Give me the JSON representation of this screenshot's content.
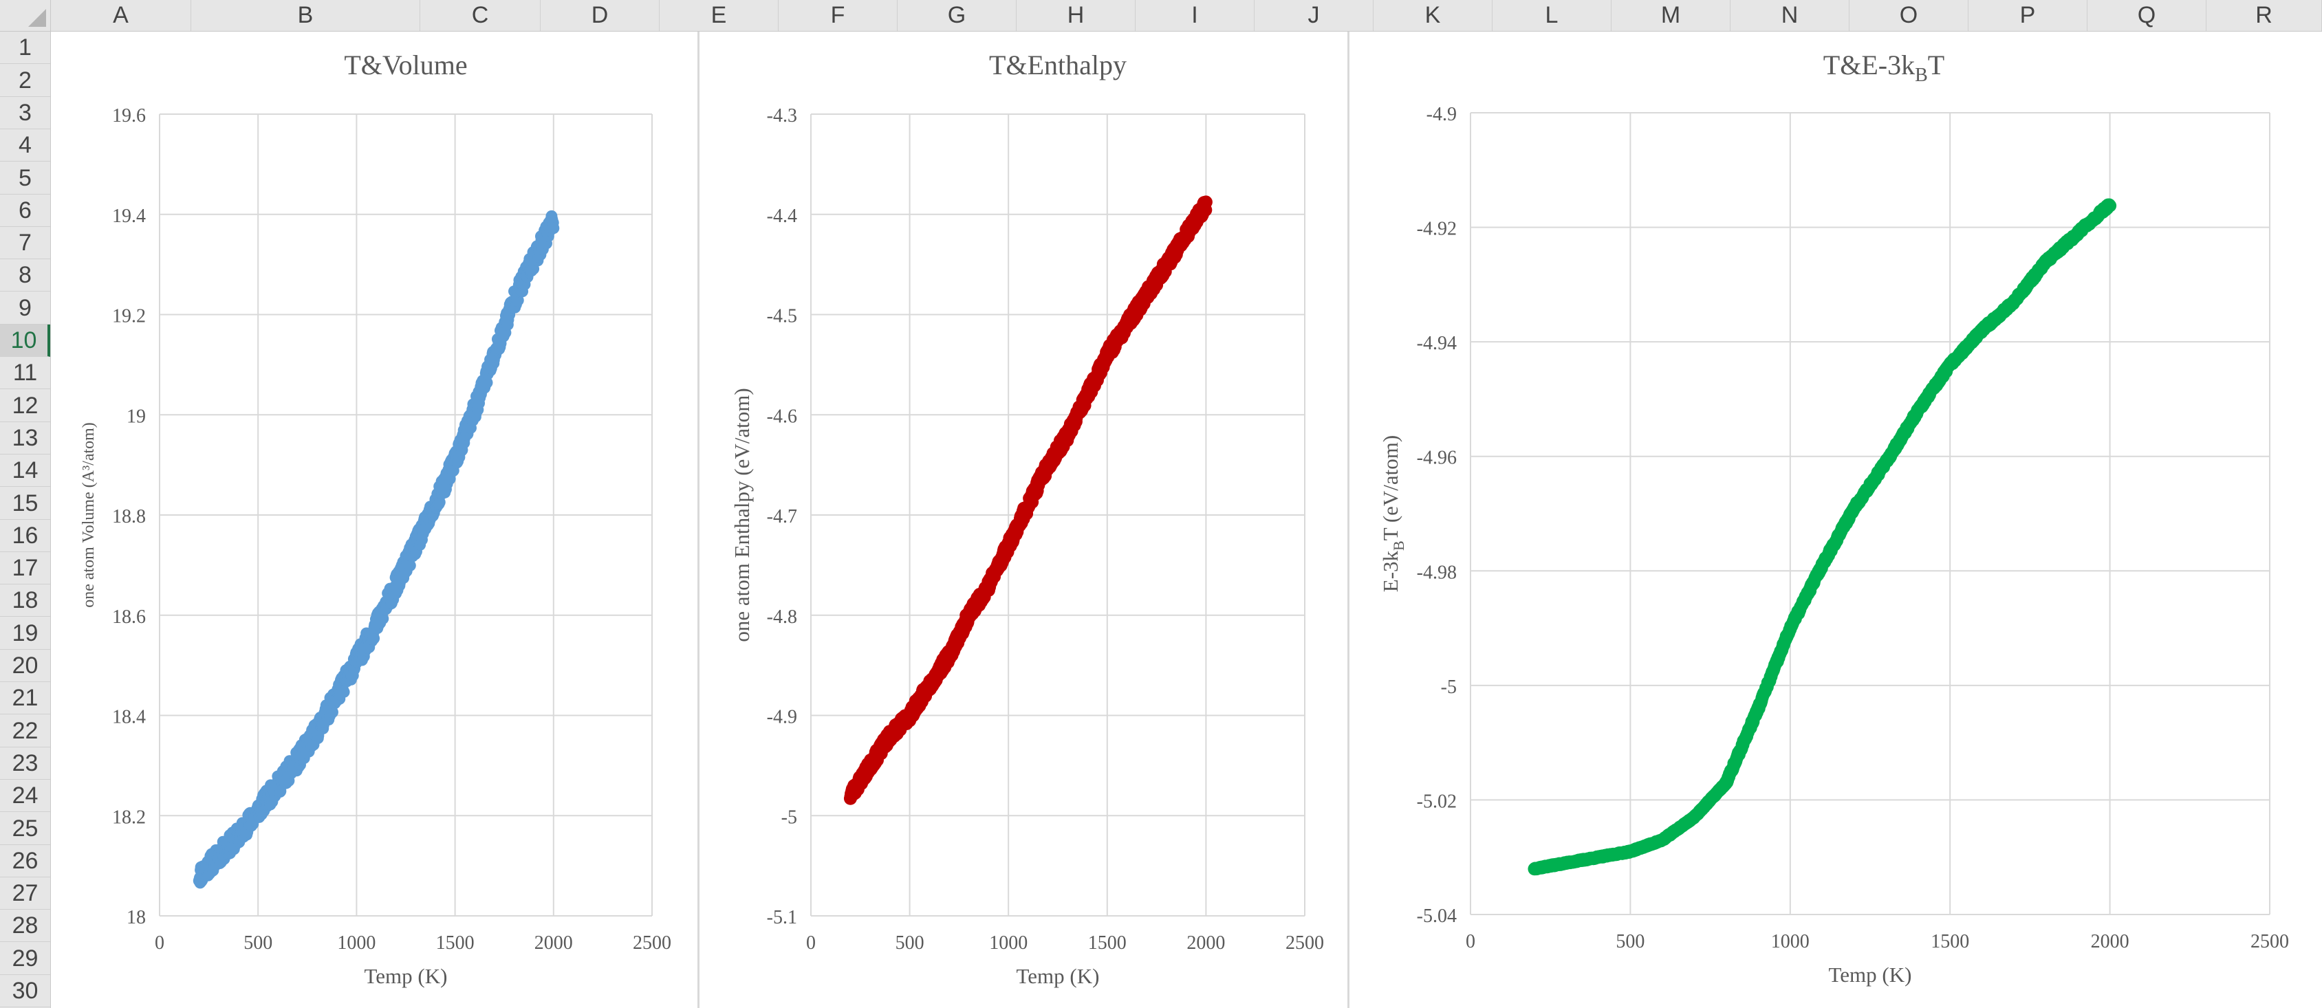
{
  "spreadsheet": {
    "columns": [
      "A",
      "B",
      "C",
      "D",
      "E",
      "F",
      "G",
      "H",
      "I",
      "J",
      "K",
      "L",
      "M",
      "N",
      "O",
      "P",
      "Q",
      "R"
    ],
    "rows": [
      "1",
      "2",
      "3",
      "4",
      "5",
      "6",
      "7",
      "8",
      "9",
      "10",
      "11",
      "12",
      "13",
      "14",
      "15",
      "16",
      "17",
      "18",
      "19",
      "20",
      "21",
      "22",
      "23",
      "24",
      "25",
      "26",
      "27",
      "28",
      "29",
      "30"
    ],
    "active_row": "10"
  },
  "colors": {
    "volume_series": "#5b9bd5",
    "enthalpy_series": "#c00000",
    "energy_series": "#00b050",
    "title_text": "#595959",
    "gridline": "#d9d9d9"
  },
  "charts": [
    {
      "title": "T&Volume",
      "xlabel": "Temp (K)",
      "ylabel": "one atom Volume (A³/atom)"
    },
    {
      "title": "T&Enthalpy",
      "xlabel": "Temp (K)",
      "ylabel": "one atom Enthalpy (eV/atom)"
    },
    {
      "title_main": "T&E-3k",
      "title_sub": "B",
      "title_end": "T",
      "xlabel": "Temp (K)",
      "ylabel_main": "E-3k",
      "ylabel_sub": "B",
      "ylabel_end": "T (eV/atom)"
    }
  ],
  "chart_data": [
    {
      "type": "scatter",
      "title": "T&Volume",
      "xlabel": "Temp (K)",
      "ylabel": "one atom Volume (A³/atom)",
      "xlim": [
        0,
        2500
      ],
      "ylim": [
        18,
        19.6
      ],
      "xticks": [
        0,
        500,
        1000,
        1500,
        2000,
        2500
      ],
      "yticks": [
        18,
        18.2,
        18.4,
        18.6,
        18.8,
        19,
        19.2,
        19.4,
        19.6
      ],
      "grid": true,
      "x_range_of_points": [
        200,
        2000
      ],
      "points": [
        [
          200,
          18.08
        ],
        [
          300,
          18.12
        ],
        [
          400,
          18.16
        ],
        [
          500,
          18.21
        ],
        [
          600,
          18.26
        ],
        [
          700,
          18.31
        ],
        [
          800,
          18.37
        ],
        [
          900,
          18.44
        ],
        [
          1000,
          18.51
        ],
        [
          1100,
          18.58
        ],
        [
          1200,
          18.66
        ],
        [
          1300,
          18.74
        ],
        [
          1400,
          18.82
        ],
        [
          1500,
          18.91
        ],
        [
          1600,
          19.01
        ],
        [
          1700,
          19.12
        ],
        [
          1800,
          19.23
        ],
        [
          1900,
          19.31
        ],
        [
          2000,
          19.39
        ]
      ]
    },
    {
      "type": "scatter",
      "title": "T&Enthalpy",
      "xlabel": "Temp (K)",
      "ylabel": "one atom Enthalpy (eV/atom)",
      "xlim": [
        0,
        2500
      ],
      "ylim": [
        -5.1,
        -4.3
      ],
      "xticks": [
        0,
        500,
        1000,
        1500,
        2000,
        2500
      ],
      "yticks": [
        -5.1,
        -5,
        -4.9,
        -4.8,
        -4.7,
        -4.6,
        -4.5,
        -4.4,
        -4.3
      ],
      "grid": true,
      "x_range_of_points": [
        200,
        2000
      ],
      "points": [
        [
          200,
          -4.98
        ],
        [
          300,
          -4.95
        ],
        [
          400,
          -4.92
        ],
        [
          500,
          -4.9
        ],
        [
          600,
          -4.87
        ],
        [
          700,
          -4.84
        ],
        [
          800,
          -4.8
        ],
        [
          900,
          -4.77
        ],
        [
          1000,
          -4.73
        ],
        [
          1100,
          -4.69
        ],
        [
          1200,
          -4.65
        ],
        [
          1300,
          -4.62
        ],
        [
          1400,
          -4.58
        ],
        [
          1500,
          -4.54
        ],
        [
          1600,
          -4.51
        ],
        [
          1700,
          -4.48
        ],
        [
          1800,
          -4.45
        ],
        [
          1900,
          -4.42
        ],
        [
          2000,
          -4.39
        ]
      ]
    },
    {
      "type": "scatter",
      "title": "T&E-3kBT",
      "xlabel": "Temp (K)",
      "ylabel": "E-3kBT (eV/atom)",
      "xlim": [
        0,
        2500
      ],
      "ylim": [
        -5.04,
        -4.9
      ],
      "xticks": [
        0,
        500,
        1000,
        1500,
        2000,
        2500
      ],
      "yticks": [
        -5.04,
        -5.02,
        -5,
        -4.98,
        -4.96,
        -4.94,
        -4.92,
        -4.9
      ],
      "grid": true,
      "x_range_of_points": [
        200,
        2000
      ],
      "points": [
        [
          200,
          -5.032
        ],
        [
          300,
          -5.031
        ],
        [
          400,
          -5.03
        ],
        [
          500,
          -5.029
        ],
        [
          600,
          -5.027
        ],
        [
          700,
          -5.023
        ],
        [
          800,
          -5.017
        ],
        [
          900,
          -5.004
        ],
        [
          1000,
          -4.99
        ],
        [
          1100,
          -4.979
        ],
        [
          1200,
          -4.969
        ],
        [
          1300,
          -4.961
        ],
        [
          1400,
          -4.952
        ],
        [
          1500,
          -4.944
        ],
        [
          1600,
          -4.938
        ],
        [
          1700,
          -4.933
        ],
        [
          1800,
          -4.926
        ],
        [
          1900,
          -4.921
        ],
        [
          2000,
          -4.916
        ]
      ]
    }
  ]
}
